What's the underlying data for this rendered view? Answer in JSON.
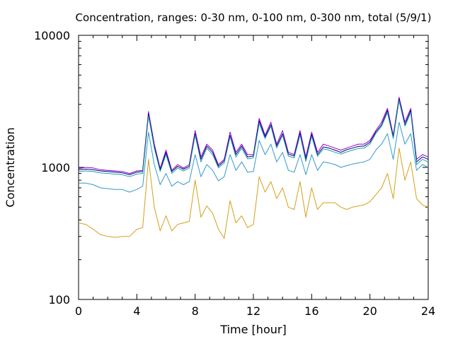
{
  "chart_data": {
    "type": "line",
    "title": "Concentration, ranges: 0-30 nm, 0-100 nm, 0-300 nm, total (5/9/1)",
    "xlabel": "Time [hour]",
    "ylabel": "Concentration",
    "xlim": [
      0,
      24
    ],
    "ylim": [
      100,
      10000
    ],
    "yscale": "log",
    "grid": false,
    "xticks": [
      0,
      4,
      8,
      12,
      16,
      20,
      24
    ],
    "xtick_labels": [
      "0",
      "4",
      "8",
      "12",
      "16",
      "20",
      "24"
    ],
    "yticks": [
      100,
      1000,
      10000
    ],
    "ytick_labels": [
      "100",
      "1000",
      "10000"
    ],
    "x": [
      0,
      0.5,
      1,
      1.5,
      2,
      2.5,
      3,
      3.5,
      4,
      4.4,
      4.8,
      5.2,
      5.6,
      6,
      6.4,
      6.8,
      7.2,
      7.6,
      8,
      8.4,
      8.8,
      9.2,
      9.6,
      10,
      10.4,
      10.8,
      11.2,
      11.6,
      12,
      12.4,
      12.8,
      13.2,
      13.6,
      14,
      14.4,
      14.8,
      15.2,
      15.6,
      16,
      16.4,
      16.8,
      17.2,
      17.6,
      18,
      18.4,
      18.8,
      19.2,
      19.6,
      20,
      20.4,
      20.8,
      21.2,
      21.6,
      22,
      22.4,
      22.8,
      23.2,
      23.6,
      24
    ],
    "series": [
      {
        "color": "#9400d3",
        "values": [
          980,
          1000,
          990,
          960,
          950,
          940,
          930,
          900,
          940,
          950,
          2650,
          1500,
          980,
          1350,
          950,
          1050,
          990,
          1050,
          1900,
          1200,
          1500,
          1350,
          1050,
          1150,
          1850,
          1300,
          1500,
          1250,
          1250,
          2350,
          1750,
          2200,
          1500,
          1900,
          1300,
          1250,
          1900,
          1200,
          1850,
          1300,
          1500,
          1450,
          1400,
          1350,
          1400,
          1450,
          1500,
          1500,
          1600,
          1900,
          2200,
          2800,
          1750,
          3400,
          2200,
          2800,
          1150,
          1250,
          1200
        ]
      },
      {
        "color": "#000080",
        "values": [
          960,
          970,
          960,
          940,
          930,
          920,
          910,
          880,
          920,
          930,
          2550,
          1450,
          960,
          1300,
          930,
          1020,
          970,
          1020,
          1800,
          1150,
          1450,
          1300,
          1020,
          1120,
          1750,
          1250,
          1450,
          1200,
          1220,
          2250,
          1700,
          2100,
          1450,
          1800,
          1260,
          1220,
          1820,
          1150,
          1780,
          1250,
          1430,
          1400,
          1350,
          1300,
          1360,
          1400,
          1440,
          1450,
          1550,
          1850,
          2100,
          2700,
          1700,
          3300,
          2100,
          2700,
          1100,
          1200,
          1150
        ]
      },
      {
        "color": "#20a0a0",
        "values": [
          930,
          940,
          930,
          910,
          900,
          890,
          880,
          850,
          890,
          900,
          2450,
          1400,
          930,
          1250,
          900,
          990,
          940,
          990,
          1750,
          1100,
          1400,
          1250,
          990,
          1080,
          1700,
          1200,
          1400,
          1160,
          1180,
          2150,
          1650,
          2050,
          1400,
          1750,
          1220,
          1180,
          1760,
          1110,
          1720,
          1210,
          1380,
          1350,
          1300,
          1260,
          1310,
          1350,
          1390,
          1400,
          1500,
          1800,
          2050,
          2600,
          1650,
          3200,
          2050,
          2600,
          1050,
          1150,
          1100
        ]
      },
      {
        "color": "#3399cc",
        "values": [
          760,
          760,
          740,
          700,
          690,
          680,
          680,
          650,
          680,
          720,
          1850,
          1050,
          740,
          900,
          720,
          780,
          740,
          780,
          1250,
          850,
          1050,
          950,
          790,
          850,
          1250,
          950,
          1100,
          920,
          930,
          1600,
          1250,
          1500,
          1100,
          1300,
          950,
          920,
          1250,
          880,
          1250,
          950,
          1100,
          1080,
          1050,
          1000,
          1030,
          1060,
          1080,
          1100,
          1150,
          1350,
          1500,
          1800,
          1150,
          2200,
          1500,
          1800,
          950,
          1050,
          1000
        ]
      },
      {
        "color": "#d4a017",
        "values": [
          380,
          370,
          340,
          310,
          300,
          295,
          300,
          300,
          340,
          350,
          1150,
          500,
          330,
          430,
          330,
          370,
          380,
          390,
          800,
          420,
          510,
          450,
          340,
          290,
          560,
          380,
          430,
          350,
          370,
          850,
          650,
          780,
          580,
          700,
          500,
          480,
          780,
          420,
          700,
          480,
          540,
          540,
          540,
          500,
          480,
          500,
          510,
          520,
          550,
          620,
          700,
          900,
          580,
          1400,
          800,
          1100,
          580,
          520,
          500
        ]
      }
    ]
  }
}
